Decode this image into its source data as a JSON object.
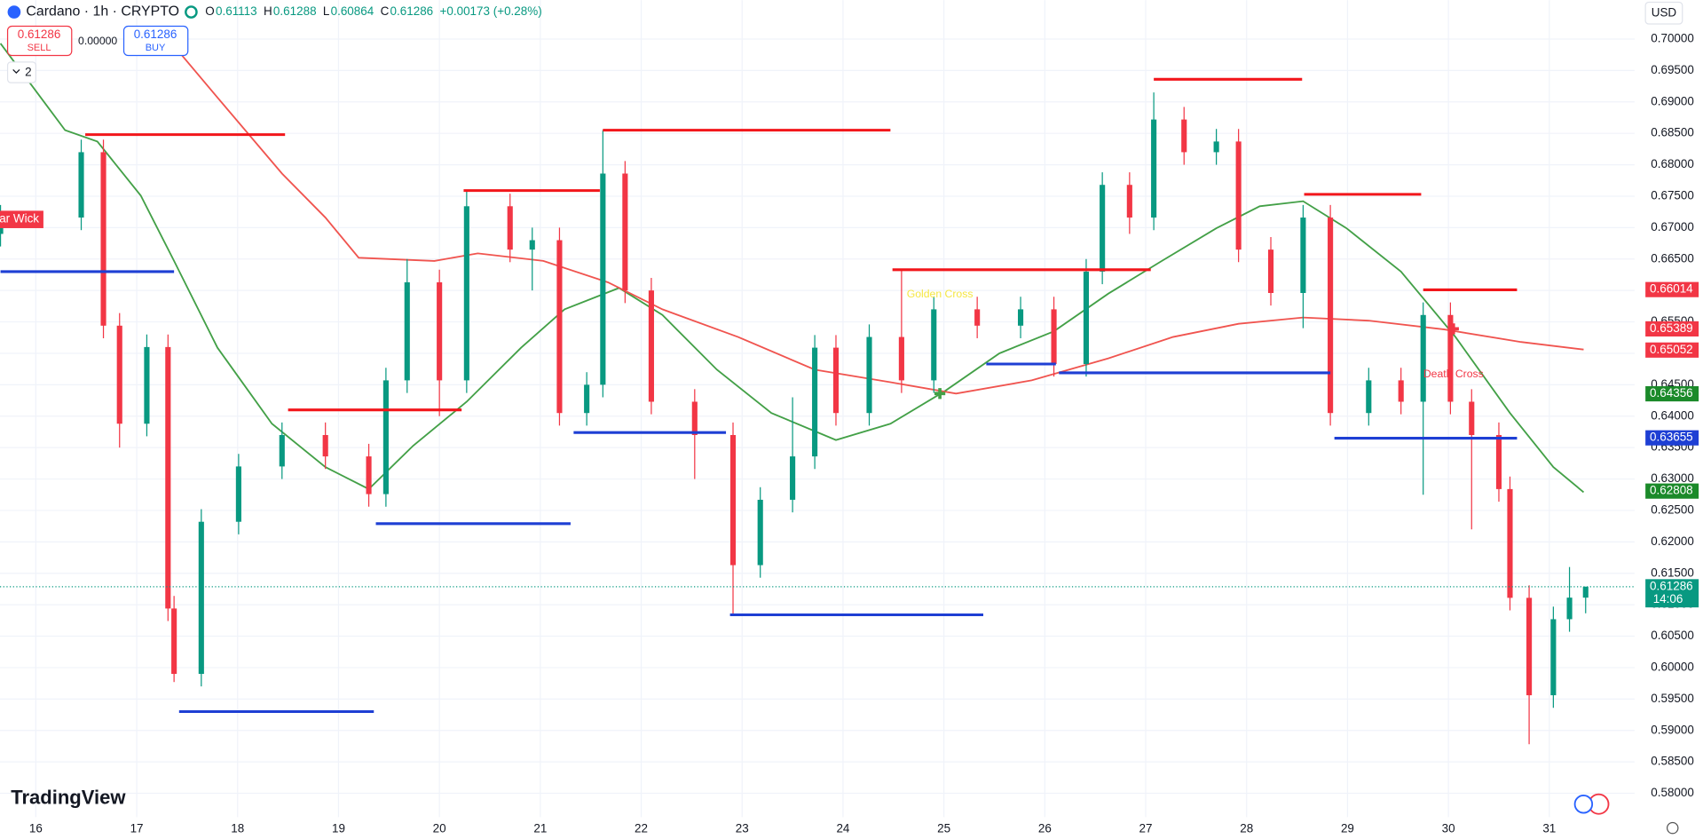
{
  "header": {
    "symbol": "Cardano · 1h · CRYPTO",
    "ohlc": [
      {
        "label": "O",
        "value": "0.61113"
      },
      {
        "label": "H",
        "value": "0.61288"
      },
      {
        "label": "L",
        "value": "0.60864"
      },
      {
        "label": "C",
        "value": "0.61286"
      }
    ],
    "change": "+0.00173 (+0.28%)",
    "sell": {
      "price": "0.61286",
      "label": "SELL"
    },
    "spread": "0.00000",
    "buy": {
      "price": "0.61286",
      "label": "BUY"
    },
    "indicators_count": "2",
    "currency": "USD",
    "brand": "TradingView"
  },
  "chart_data": {
    "type": "candlestick",
    "xlim": [
      15.645,
      31.845
    ],
    "ylim": [
      0.5762,
      0.7062
    ],
    "xticks": [
      16,
      17,
      18,
      19,
      20,
      21,
      22,
      23,
      24,
      25,
      26,
      27,
      28,
      29,
      30,
      31
    ],
    "yticks": [
      {
        "value": 0.58,
        "label": "0.58000"
      },
      {
        "value": 0.585,
        "label": "0.58500"
      },
      {
        "value": 0.59,
        "label": "0.59000"
      },
      {
        "value": 0.595,
        "label": "0.59500"
      },
      {
        "value": 0.6,
        "label": "0.60000"
      },
      {
        "value": 0.605,
        "label": "0.60500"
      },
      {
        "value": 0.61,
        "label": "0.61000"
      },
      {
        "value": 0.615,
        "label": "0.61500"
      },
      {
        "value": 0.62,
        "label": "0.62000"
      },
      {
        "value": 0.625,
        "label": "0.62500"
      },
      {
        "value": 0.63,
        "label": "0.63000"
      },
      {
        "value": 0.635,
        "label": "0.63500"
      },
      {
        "value": 0.64,
        "label": "0.64000"
      },
      {
        "value": 0.645,
        "label": "0.64500"
      },
      {
        "value": 0.65,
        "label": "0.65000"
      },
      {
        "value": 0.655,
        "label": "0.65500"
      },
      {
        "value": 0.66,
        "label": "0.66000"
      },
      {
        "value": 0.665,
        "label": "0.66500"
      },
      {
        "value": 0.67,
        "label": "0.67000"
      },
      {
        "value": 0.675,
        "label": "0.67500"
      },
      {
        "value": 0.68,
        "label": "0.68000"
      },
      {
        "value": 0.685,
        "label": "0.68500"
      },
      {
        "value": 0.69,
        "label": "0.69000"
      },
      {
        "value": 0.695,
        "label": "0.69500"
      },
      {
        "value": 0.7,
        "label": "0.70000"
      }
    ],
    "grid": true,
    "up_color": "#089981",
    "down_color": "#f23645",
    "x": [
      15.65,
      16.45,
      16.67,
      16.83,
      17.1,
      17.31,
      17.37,
      17.64,
      18.01,
      18.44,
      18.87,
      19.3,
      19.47,
      19.68,
      20.0,
      20.27,
      20.7,
      20.92,
      21.19,
      21.46,
      21.62,
      21.84,
      22.1,
      22.53,
      22.91,
      23.18,
      23.5,
      23.72,
      23.93,
      24.26,
      24.58,
      24.9,
      25.33,
      25.76,
      26.09,
      26.41,
      26.57,
      26.84,
      27.08,
      27.38,
      27.7,
      27.92,
      28.24,
      28.56,
      28.83,
      29.21,
      29.53,
      29.75,
      30.02,
      30.23,
      30.5,
      30.61,
      30.8,
      31.04,
      31.2,
      31.36
    ],
    "open": [
      0.669,
      0.6716,
      0.682,
      0.6544,
      0.6388,
      0.651,
      0.6094,
      0.599,
      0.6232,
      0.632,
      0.637,
      0.6336,
      0.6276,
      0.6457,
      0.6613,
      0.6457,
      0.6734,
      0.6665,
      0.668,
      0.6405,
      0.645,
      0.6786,
      0.66,
      0.6423,
      0.637,
      0.6163,
      0.6267,
      0.6336,
      0.6509,
      0.6405,
      0.6526,
      0.6457,
      0.657,
      0.6544,
      0.657,
      0.6483,
      0.663,
      0.6768,
      0.6716,
      0.6872,
      0.682,
      0.6837,
      0.6665,
      0.6596,
      0.6716,
      0.6405,
      0.6457,
      0.6423,
      0.6561,
      0.6423,
      0.637,
      0.6284,
      0.6111,
      0.5956,
      0.6077,
      0.61113
    ],
    "high": [
      0.6736,
      0.684,
      0.684,
      0.6564,
      0.653,
      0.653,
      0.6114,
      0.6252,
      0.634,
      0.639,
      0.639,
      0.6356,
      0.6477,
      0.665,
      0.6633,
      0.676,
      0.6754,
      0.67,
      0.67,
      0.647,
      0.6855,
      0.6806,
      0.662,
      0.6443,
      0.639,
      0.6287,
      0.643,
      0.6529,
      0.6529,
      0.6546,
      0.6633,
      0.659,
      0.659,
      0.659,
      0.659,
      0.665,
      0.6788,
      0.6788,
      0.6915,
      0.6892,
      0.6857,
      0.6857,
      0.6685,
      0.6736,
      0.6736,
      0.6477,
      0.6477,
      0.6581,
      0.6581,
      0.6443,
      0.639,
      0.6304,
      0.6131,
      0.6097,
      0.616,
      0.61288
    ],
    "low": [
      0.667,
      0.6696,
      0.6524,
      0.635,
      0.6368,
      0.6074,
      0.5977,
      0.597,
      0.6212,
      0.63,
      0.6316,
      0.6256,
      0.6256,
      0.6437,
      0.64,
      0.6437,
      0.6645,
      0.66,
      0.6385,
      0.6385,
      0.643,
      0.658,
      0.6403,
      0.63,
      0.6085,
      0.6143,
      0.6247,
      0.6316,
      0.6385,
      0.6385,
      0.6437,
      0.6437,
      0.6524,
      0.6524,
      0.6463,
      0.6463,
      0.661,
      0.669,
      0.6696,
      0.68,
      0.68,
      0.6645,
      0.6576,
      0.654,
      0.6385,
      0.6385,
      0.6403,
      0.6275,
      0.6403,
      0.622,
      0.6264,
      0.6091,
      0.5878,
      0.5936,
      0.6057,
      0.60864
    ],
    "close": [
      0.6716,
      0.682,
      0.6544,
      0.6388,
      0.651,
      0.6094,
      0.599,
      0.6232,
      0.632,
      0.637,
      0.6336,
      0.6276,
      0.6457,
      0.6613,
      0.6457,
      0.6734,
      0.6665,
      0.668,
      0.6405,
      0.645,
      0.6786,
      0.66,
      0.6423,
      0.637,
      0.6163,
      0.6267,
      0.6336,
      0.6509,
      0.6405,
      0.6526,
      0.6457,
      0.657,
      0.6544,
      0.657,
      0.6483,
      0.663,
      0.6768,
      0.6716,
      0.6872,
      0.682,
      0.6837,
      0.6665,
      0.6596,
      0.6716,
      0.6405,
      0.6457,
      0.6423,
      0.6561,
      0.6423,
      0.637,
      0.6284,
      0.6111,
      0.5956,
      0.6077,
      0.61113,
      0.61286
    ],
    "moving_averages": [
      {
        "color": "#43a047",
        "x": [
          15.65,
          15.97,
          16.29,
          16.61,
          17.04,
          17.37,
          17.8,
          18.34,
          18.87,
          19.3,
          19.74,
          20.27,
          20.81,
          21.24,
          21.78,
          22.21,
          22.75,
          23.29,
          23.93,
          24.47,
          25.01,
          25.55,
          26.09,
          26.63,
          27.16,
          27.7,
          28.13,
          28.56,
          28.99,
          29.53,
          30.07,
          30.61,
          31.04,
          31.34
        ],
        "values": [
          0.6993,
          0.6924,
          0.6855,
          0.6837,
          0.6751,
          0.6647,
          0.6509,
          0.6388,
          0.6319,
          0.6284,
          0.6353,
          0.6423,
          0.6509,
          0.657,
          0.6604,
          0.6561,
          0.6474,
          0.6405,
          0.6362,
          0.6388,
          0.644,
          0.65,
          0.6535,
          0.6595,
          0.6647,
          0.6699,
          0.6734,
          0.6742,
          0.6699,
          0.663,
          0.6526,
          0.6405,
          0.6319,
          0.6279
        ]
      },
      {
        "color": "#f0544f",
        "x": [
          17.26,
          17.8,
          18.44,
          18.87,
          19.2,
          19.95,
          20.38,
          21.03,
          21.67,
          22.21,
          22.96,
          23.72,
          24.47,
          25.12,
          25.87,
          26.63,
          27.27,
          27.92,
          28.56,
          29.21,
          29.96,
          30.72,
          31.34
        ],
        "values": [
          0.701,
          0.6907,
          0.6786,
          0.6716,
          0.6652,
          0.6647,
          0.6659,
          0.6647,
          0.6613,
          0.657,
          0.6526,
          0.6474,
          0.6454,
          0.6436,
          0.6457,
          0.6492,
          0.6526,
          0.6547,
          0.6557,
          0.6552,
          0.6538,
          0.6518,
          0.6506
        ]
      }
    ],
    "resistance_lines": {
      "color": "#f2161b",
      "x0": [
        16.49,
        20.24,
        21.62,
        18.5,
        24.49,
        27.08,
        28.57,
        29.75
      ],
      "x1": [
        18.47,
        21.59,
        24.47,
        20.22,
        27.05,
        28.55,
        29.73,
        30.68
      ],
      "y": [
        0.6848,
        0.6759,
        0.6855,
        0.641,
        0.6633,
        0.6936,
        0.6753,
        0.6601
      ]
    },
    "support_lines": {
      "color": "#1e3fd4",
      "x0": [
        15.65,
        17.42,
        19.37,
        21.33,
        22.88,
        25.42,
        26.14,
        28.87
      ],
      "x1": [
        17.37,
        19.35,
        21.3,
        22.84,
        25.39,
        26.11,
        28.83,
        30.68
      ],
      "y": [
        0.663,
        0.593,
        0.6229,
        0.6374,
        0.6084,
        0.6483,
        0.6469,
        0.6365
      ]
    },
    "annotations": [
      {
        "text": "Bear Wick",
        "x": 15.45,
        "y": 0.6713,
        "color": "#f23645",
        "boxed": true
      },
      {
        "text": "Golden Cross",
        "x": 24.96,
        "y": 0.6436,
        "color": "#f5e642",
        "marker_color": "#43a047"
      },
      {
        "text": "Death Cross",
        "x": 30.05,
        "y": 0.6539,
        "color": "#f23645",
        "marker_color": "#f23645"
      }
    ],
    "price_labels": [
      {
        "value": 0.66014,
        "label": "0.66014",
        "color": "#f23645"
      },
      {
        "value": 0.65389,
        "label": "0.65389",
        "color": "#f23645"
      },
      {
        "value": 0.65052,
        "label": "0.65052",
        "color": "#f23645"
      },
      {
        "value": 0.64356,
        "label": "0.64356",
        "color": "#1b8a2a"
      },
      {
        "value": 0.63655,
        "label": "0.63655",
        "color": "#1e3fd4"
      },
      {
        "value": 0.62808,
        "label": "0.62808",
        "color": "#1b8a2a"
      },
      {
        "value": 0.61286,
        "label": "0.61286",
        "sublabel": "14:06",
        "color": "#089981",
        "last": true
      }
    ]
  }
}
